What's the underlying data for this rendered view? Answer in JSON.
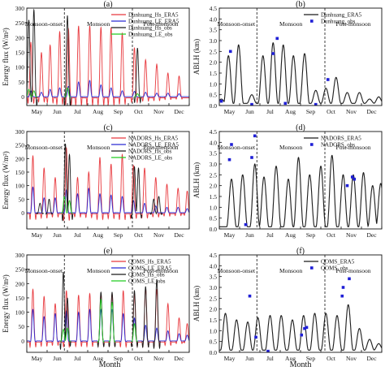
{
  "figure": {
    "x_axis_title": "Month",
    "period_labels": [
      "Monsoon-onset",
      "Monsoon",
      "Post-monsoon"
    ],
    "months": [
      "May",
      "Jun",
      "Jul",
      "Aug",
      "Sep",
      "Oct",
      "Nov",
      "Dec"
    ]
  },
  "chart_data": [
    {
      "type": "line",
      "panel": "(a)",
      "ylabel": "Energy flux (W/m²)",
      "ylim": [
        -30,
        300
      ],
      "yticks": [
        0,
        50,
        100,
        150,
        200,
        250,
        300
      ],
      "xlim": [
        0,
        8
      ],
      "period_dividers": [
        1.85,
        5.2
      ],
      "legend": "top-right",
      "series": [
        {
          "name": "Dunhuang_Hs_ERA5",
          "color": "#e8383d",
          "kind": "diurnal",
          "day_minus_night": true,
          "peaks": [
            [
              0.2,
              185
            ],
            [
              0.72,
              150
            ],
            [
              1.15,
              175
            ],
            [
              1.62,
              220
            ],
            [
              2.05,
              230
            ],
            [
              2.55,
              240
            ],
            [
              3.1,
              240
            ],
            [
              3.65,
              235
            ],
            [
              4.15,
              235
            ],
            [
              4.7,
              215
            ],
            [
              5.3,
              165
            ],
            [
              5.85,
              125
            ],
            [
              6.4,
              110
            ],
            [
              6.95,
              80
            ],
            [
              7.5,
              70
            ]
          ]
        },
        {
          "name": "Dunhuang_LE_ERA5",
          "color": "#2a2ad4",
          "kind": "diurnal",
          "peaks": [
            [
              0.2,
              20
            ],
            [
              0.72,
              15
            ],
            [
              1.15,
              25
            ],
            [
              1.62,
              30
            ],
            [
              2.05,
              35
            ],
            [
              2.55,
              50
            ],
            [
              3.1,
              55
            ],
            [
              3.65,
              40
            ],
            [
              4.15,
              30
            ],
            [
              4.7,
              20
            ],
            [
              5.3,
              18
            ],
            [
              5.85,
              15
            ],
            [
              6.4,
              12
            ],
            [
              6.95,
              12
            ],
            [
              7.5,
              10
            ]
          ]
        },
        {
          "name": "Dunhuang_Hs_obs",
          "color": "#1a1a1a",
          "kind": "diurnal",
          "day_minus_night": true,
          "peaks": [
            [
              0.1,
              260
            ],
            [
              0.35,
              295
            ],
            [
              2.0,
              275
            ],
            [
              5.45,
              165
            ]
          ]
        },
        {
          "name": "Dunhuang_LE_obs",
          "color": "#22cc22",
          "kind": "diurnal",
          "peaks": [
            [
              0.1,
              25
            ],
            [
              0.35,
              20
            ],
            [
              2.0,
              30
            ],
            [
              5.45,
              10
            ]
          ]
        }
      ]
    },
    {
      "type": "line",
      "panel": "(b)",
      "ylabel": "ABLH (km)",
      "ylim": [
        0,
        4.5
      ],
      "yticks": [
        0,
        0.5,
        1.0,
        1.5,
        2.0,
        2.5,
        3.0,
        3.5,
        4.0,
        4.5
      ],
      "xlim": [
        0,
        8
      ],
      "period_dividers": [
        1.85,
        5.2
      ],
      "legend": "top-right",
      "series": [
        {
          "name": "Dunhuang_ERA5",
          "color": "#1a1a1a",
          "kind": "line",
          "baseline": 0.1,
          "peaks": [
            [
              0.1,
              0.3
            ],
            [
              0.45,
              2.3
            ],
            [
              0.95,
              2.8
            ],
            [
              1.6,
              0.5
            ],
            [
              2.15,
              2.3
            ],
            [
              2.65,
              2.9
            ],
            [
              3.15,
              2.8
            ],
            [
              3.65,
              2.3
            ],
            [
              4.2,
              2.4
            ],
            [
              4.75,
              0.7
            ],
            [
              5.25,
              0.8
            ],
            [
              5.75,
              1.3
            ],
            [
              6.3,
              0.6
            ],
            [
              6.9,
              0.6
            ],
            [
              7.4,
              0.3
            ],
            [
              7.85,
              0.4
            ]
          ]
        },
        {
          "name": "Dunhuang_obs",
          "color": "#1f1fd6",
          "kind": "points",
          "x": [
            0.1,
            0.55,
            1.6,
            2.65,
            2.85,
            3.25,
            4.75,
            5.35
          ],
          "y": [
            0.2,
            2.5,
            0.05,
            2.4,
            3.1,
            0.1,
            0.05,
            1.2
          ]
        }
      ]
    },
    {
      "type": "line",
      "panel": "(c)",
      "ylabel": "Energy flux (W/m²)",
      "ylim": [
        -60,
        300
      ],
      "yticks": [
        0,
        50,
        100,
        150,
        200,
        250,
        300
      ],
      "xlim": [
        0,
        8
      ],
      "period_dividers": [
        1.85,
        5.2
      ],
      "legend": "top-right",
      "series": [
        {
          "name": "NADORS_Hs_ERA5",
          "color": "#e8383d",
          "kind": "diurnal",
          "day_minus_night": true,
          "peaks": [
            [
              0.3,
              210
            ],
            [
              0.85,
              165
            ],
            [
              1.4,
              130
            ],
            [
              1.95,
              240
            ],
            [
              2.5,
              130
            ],
            [
              3.05,
              150
            ],
            [
              3.6,
              205
            ],
            [
              4.15,
              180
            ],
            [
              4.7,
              215
            ],
            [
              5.25,
              175
            ],
            [
              5.8,
              165
            ],
            [
              6.35,
              130
            ],
            [
              6.9,
              105
            ],
            [
              7.45,
              90
            ],
            [
              7.9,
              80
            ]
          ]
        },
        {
          "name": "NADORS_LE_ERA5",
          "color": "#2a2ad4",
          "kind": "diurnal",
          "peaks": [
            [
              0.3,
              95
            ],
            [
              0.85,
              55
            ],
            [
              1.4,
              55
            ],
            [
              1.95,
              85
            ],
            [
              2.5,
              70
            ],
            [
              3.05,
              90
            ],
            [
              3.6,
              70
            ],
            [
              4.15,
              65
            ],
            [
              4.7,
              60
            ],
            [
              5.25,
              45
            ],
            [
              5.8,
              35
            ],
            [
              6.35,
              25
            ],
            [
              6.9,
              20
            ],
            [
              7.45,
              20
            ],
            [
              7.9,
              15
            ]
          ]
        },
        {
          "name": "NADORS_Hs_obs",
          "color": "#1a1a1a",
          "kind": "diurnal",
          "day_minus_night": true,
          "peaks": [
            [
              0.65,
              35
            ],
            [
              1.1,
              50
            ],
            [
              1.9,
              255
            ],
            [
              2.1,
              215
            ],
            [
              5.3,
              170
            ],
            [
              5.5,
              165
            ],
            [
              6.25,
              50
            ],
            [
              6.5,
              60
            ]
          ]
        },
        {
          "name": "NADORS_LE_obs",
          "color": "#22cc22",
          "kind": "diurnal",
          "peaks": [
            [
              1.85,
              60
            ],
            [
              2.1,
              45
            ]
          ]
        }
      ]
    },
    {
      "type": "line",
      "panel": "(d)",
      "ylabel": "ABLH (km)",
      "ylim": [
        0,
        4.5
      ],
      "yticks": [
        0,
        0.5,
        1.0,
        1.5,
        2.0,
        2.5,
        3.0,
        3.5,
        4.0,
        4.5
      ],
      "xlim": [
        0,
        8
      ],
      "period_dividers": [
        1.85,
        5.2
      ],
      "legend": "top-right",
      "series": [
        {
          "name": "NADORS_ERA5",
          "color": "#1a1a1a",
          "kind": "line",
          "baseline": 0.1,
          "peaks": [
            [
              0.6,
              2.3
            ],
            [
              1.15,
              2.5
            ],
            [
              1.75,
              3.0
            ],
            [
              2.2,
              2.4
            ],
            [
              2.8,
              2.9
            ],
            [
              3.4,
              2.3
            ],
            [
              3.9,
              3.3
            ],
            [
              4.45,
              2.5
            ],
            [
              5.0,
              2.9
            ],
            [
              5.55,
              3.4
            ],
            [
              6.1,
              2.5
            ],
            [
              6.6,
              2.5
            ],
            [
              7.1,
              2.6
            ],
            [
              7.55,
              2.0
            ],
            [
              7.95,
              2.1
            ]
          ]
        },
        {
          "name": "NADORS_obs",
          "color": "#1f1fd6",
          "kind": "points",
          "x": [
            0.5,
            0.6,
            1.3,
            1.6,
            1.75,
            6.3,
            6.55,
            6.65
          ],
          "y": [
            3.2,
            3.9,
            0.2,
            3.3,
            4.3,
            2.0,
            2.4,
            2.3
          ]
        }
      ]
    },
    {
      "type": "line",
      "panel": "(e)",
      "ylabel": "Energy flux (W/m²)",
      "ylim": [
        -40,
        300
      ],
      "yticks": [
        0,
        50,
        100,
        150,
        200,
        250,
        300
      ],
      "xlim": [
        0,
        8
      ],
      "period_dividers": [
        1.85,
        5.2
      ],
      "legend": "top-right",
      "series": [
        {
          "name": "QOMS_Hs_ERA5",
          "color": "#e8383d",
          "kind": "diurnal",
          "day_minus_night": true,
          "peaks": [
            [
              0.3,
              180
            ],
            [
              0.85,
              155
            ],
            [
              1.4,
              130
            ],
            [
              1.95,
              175
            ],
            [
              2.55,
              160
            ],
            [
              3.1,
              165
            ],
            [
              3.65,
              165
            ],
            [
              4.2,
              165
            ],
            [
              4.75,
              175
            ],
            [
              5.3,
              165
            ],
            [
              5.85,
              185
            ],
            [
              6.4,
              180
            ],
            [
              6.95,
              130
            ],
            [
              7.5,
              80
            ],
            [
              7.9,
              60
            ]
          ]
        },
        {
          "name": "QOMS_LE_ERA5",
          "color": "#2a2ad4",
          "kind": "diurnal",
          "peaks": [
            [
              0.3,
              110
            ],
            [
              0.85,
              85
            ],
            [
              1.4,
              95
            ],
            [
              1.95,
              105
            ],
            [
              2.55,
              100
            ],
            [
              3.1,
              110
            ],
            [
              3.65,
              110
            ],
            [
              4.2,
              110
            ],
            [
              4.75,
              95
            ],
            [
              5.3,
              80
            ],
            [
              5.85,
              55
            ],
            [
              6.4,
              45
            ],
            [
              6.95,
              35
            ],
            [
              7.5,
              25
            ],
            [
              7.9,
              20
            ]
          ]
        },
        {
          "name": "QOMS_Hs_obs",
          "color": "#1a1a1a",
          "kind": "diurnal",
          "day_minus_night": true,
          "peaks": [
            [
              1.8,
              240
            ],
            [
              2.0,
              150
            ],
            [
              3.65,
              170
            ],
            [
              4.2,
              170
            ],
            [
              5.3,
              175
            ],
            [
              5.85,
              190
            ],
            [
              6.4,
              215
            ]
          ]
        },
        {
          "name": "QOMS_LE_obs",
          "color": "#22cc22",
          "kind": "diurnal",
          "peaks": [
            [
              1.8,
              40
            ],
            [
              2.0,
              45
            ],
            [
              3.65,
              145
            ],
            [
              4.2,
              135
            ],
            [
              5.3,
              60
            ]
          ]
        }
      ]
    },
    {
      "type": "line",
      "panel": "(f)",
      "ylabel": "ABLH (km)",
      "ylim": [
        0,
        4.5
      ],
      "yticks": [
        0,
        0.5,
        1.0,
        1.5,
        2.0,
        2.5,
        3.0,
        3.5,
        4.0,
        4.5
      ],
      "xlim": [
        0,
        8
      ],
      "period_dividers": [
        1.85,
        5.2
      ],
      "legend": "top-right",
      "series": [
        {
          "name": "QOMS_ERA5",
          "color": "#1a1a1a",
          "kind": "line",
          "baseline": 0.1,
          "peaks": [
            [
              0.3,
              1.8
            ],
            [
              0.85,
              1.5
            ],
            [
              1.4,
              1.4
            ],
            [
              1.9,
              1.6
            ],
            [
              2.5,
              1.7
            ],
            [
              3.05,
              1.7
            ],
            [
              3.6,
              1.5
            ],
            [
              4.15,
              1.7
            ],
            [
              4.7,
              1.8
            ],
            [
              5.25,
              1.8
            ],
            [
              5.8,
              1.7
            ],
            [
              6.35,
              2.2
            ],
            [
              6.9,
              1.1
            ],
            [
              7.4,
              0.6
            ],
            [
              7.85,
              0.4
            ]
          ]
        },
        {
          "name": "QOMS_obs",
          "color": "#1f1fd6",
          "kind": "points",
          "x": [
            1.5,
            1.8,
            2.4,
            4.05,
            4.2,
            4.3,
            6.05,
            6.1,
            6.4
          ],
          "y": [
            2.6,
            0.7,
            0.05,
            0.8,
            1.1,
            1.15,
            2.6,
            3.0,
            3.4
          ]
        }
      ]
    }
  ]
}
